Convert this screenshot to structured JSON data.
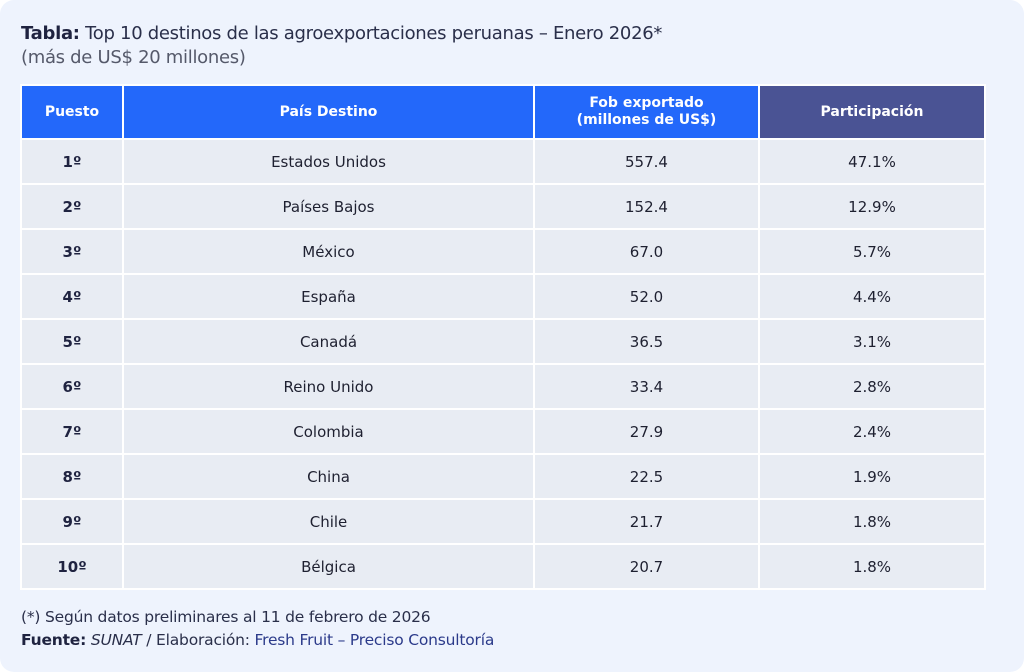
{
  "title": {
    "prefix": "Tabla:",
    "text": " Top 10 destinos de las agroexportaciones peruanas – Enero 2026*",
    "subtitle": "(más de US$ 20 millones)"
  },
  "colors": {
    "header": "#2368fa",
    "header_accent": "#4a5394",
    "row": "#e8ecf3",
    "background": "#eef3fd"
  },
  "chart_data": {
    "type": "table",
    "columns": [
      "Puesto",
      "País Destino",
      "Fob exportado\n(millones de US$)",
      "Participación"
    ],
    "rows": [
      [
        "1º",
        "Estados Unidos",
        "557.4",
        "47.1%"
      ],
      [
        "2º",
        "Países Bajos",
        "152.4",
        "12.9%"
      ],
      [
        "3º",
        "México",
        "67.0",
        "5.7%"
      ],
      [
        "4º",
        "España",
        "52.0",
        "4.4%"
      ],
      [
        "5º",
        "Canadá",
        "36.5",
        "3.1%"
      ],
      [
        "6º",
        "Reino Unido",
        "33.4",
        "2.8%"
      ],
      [
        "7º",
        "Colombia",
        "27.9",
        "2.4%"
      ],
      [
        "8º",
        "China",
        "22.5",
        "1.9%"
      ],
      [
        "9º",
        "Chile",
        "21.7",
        "1.8%"
      ],
      [
        "10º",
        "Bélgica",
        "20.7",
        "1.8%"
      ]
    ]
  },
  "footer": {
    "note": "(*) Según datos preliminares al 11 de febrero de 2026",
    "source_label": "Fuente:",
    "source": " SUNAT",
    "separator": " / Elaboración: ",
    "brand": "Fresh Fruit – Preciso Consultoría"
  }
}
